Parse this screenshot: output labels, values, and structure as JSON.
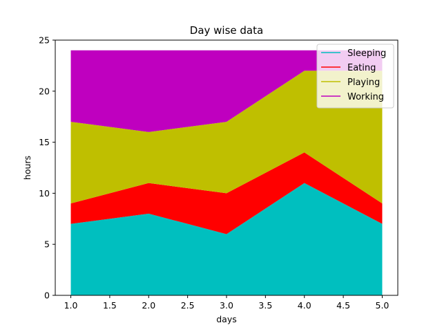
{
  "chart_data": {
    "type": "area",
    "stacked": true,
    "title": "Day wise data",
    "xlabel": "days",
    "ylabel": "hours",
    "x": [
      1,
      2,
      3,
      4,
      5
    ],
    "xlim": [
      0.8,
      5.2
    ],
    "ylim": [
      0,
      25
    ],
    "xticks": [
      1.0,
      1.5,
      2.0,
      2.5,
      3.0,
      3.5,
      4.0,
      4.5,
      5.0
    ],
    "xtick_labels": [
      "1.0",
      "1.5",
      "2.0",
      "2.5",
      "3.0",
      "3.5",
      "4.0",
      "4.5",
      "5.0"
    ],
    "yticks": [
      0,
      5,
      10,
      15,
      20,
      25
    ],
    "ytick_labels": [
      "0",
      "5",
      "10",
      "15",
      "20",
      "25"
    ],
    "grid": false,
    "legend_position": "top-right",
    "series": [
      {
        "name": "Sleeping",
        "values": [
          7,
          8,
          6,
          11,
          7
        ],
        "color": "#00bfbf"
      },
      {
        "name": "Eating",
        "values": [
          2,
          3,
          4,
          3,
          2
        ],
        "color": "#ff0000"
      },
      {
        "name": "Playing",
        "values": [
          8,
          5,
          7,
          8,
          13
        ],
        "color": "#bfbf00"
      },
      {
        "name": "Working",
        "values": [
          7,
          8,
          7,
          2,
          2
        ],
        "color": "#bf00bf"
      }
    ]
  }
}
